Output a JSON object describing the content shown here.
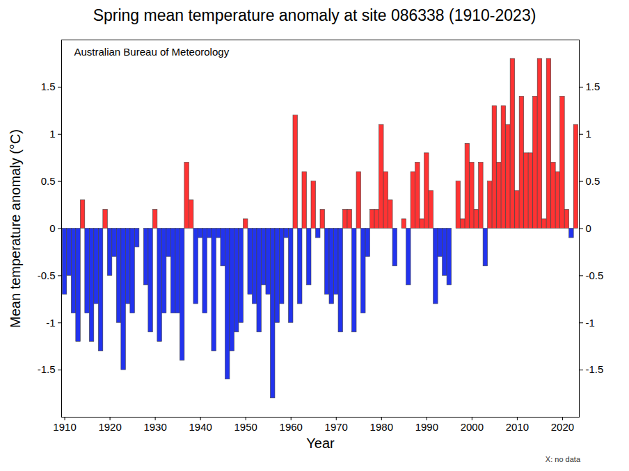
{
  "chart_data": {
    "type": "bar",
    "title": "Spring mean temperature anomaly at site 086338 (1910-2023)",
    "annotation": "Australian Bureau of Meteorology",
    "caption": "X: no data",
    "xlabel": "Year",
    "ylabel": "Mean temperature anomaly (°C)",
    "x": [
      1910,
      1911,
      1912,
      1913,
      1914,
      1915,
      1916,
      1917,
      1918,
      1919,
      1920,
      1921,
      1922,
      1923,
      1924,
      1925,
      1926,
      1927,
      1928,
      1929,
      1930,
      1931,
      1932,
      1933,
      1934,
      1935,
      1936,
      1937,
      1938,
      1939,
      1940,
      1941,
      1942,
      1943,
      1944,
      1945,
      1946,
      1947,
      1948,
      1949,
      1950,
      1951,
      1952,
      1953,
      1954,
      1955,
      1956,
      1957,
      1958,
      1959,
      1960,
      1961,
      1962,
      1963,
      1964,
      1965,
      1966,
      1967,
      1968,
      1969,
      1970,
      1971,
      1972,
      1973,
      1974,
      1975,
      1976,
      1977,
      1978,
      1979,
      1980,
      1981,
      1982,
      1983,
      1984,
      1985,
      1986,
      1987,
      1988,
      1989,
      1990,
      1991,
      1992,
      1993,
      1994,
      1995,
      1996,
      1997,
      1998,
      1999,
      2000,
      2001,
      2002,
      2003,
      2004,
      2005,
      2006,
      2007,
      2008,
      2009,
      2010,
      2011,
      2012,
      2013,
      2014,
      2015,
      2016,
      2017,
      2018,
      2019,
      2020,
      2021,
      2022,
      2023
    ],
    "values": [
      -0.7,
      -0.5,
      -0.9,
      -1.2,
      0.3,
      -0.9,
      -1.2,
      -0.8,
      -1.3,
      0.2,
      -0.5,
      -0.3,
      -1.0,
      -1.5,
      -0.8,
      -0.9,
      -0.2,
      0,
      -0.6,
      -1.1,
      0.2,
      -1.2,
      -0.9,
      -0.3,
      -0.9,
      -0.9,
      -1.4,
      0.7,
      0.3,
      -0.8,
      -0.1,
      -0.9,
      -0.1,
      -1.3,
      -0.1,
      -0.4,
      -1.6,
      -1.3,
      -1.1,
      -1.0,
      0.1,
      -0.7,
      -0.8,
      -1.1,
      -0.6,
      -0.7,
      -1.8,
      -1.0,
      -0.8,
      -0.1,
      -1.0,
      1.2,
      -0.8,
      0.6,
      -0.6,
      0.5,
      -0.1,
      0.2,
      -0.7,
      -0.8,
      -0.7,
      -1.1,
      0.2,
      0.2,
      -1.1,
      0.6,
      -0.9,
      -0.3,
      0.2,
      0.2,
      1.1,
      0.6,
      0.3,
      -0.4,
      0,
      0.1,
      -0.6,
      0.6,
      0.7,
      0.1,
      0.8,
      0.4,
      -0.8,
      -0.3,
      -0.5,
      -0.6,
      0,
      0.5,
      0.1,
      0.9,
      0.7,
      0.2,
      0.7,
      -0.4,
      0.5,
      1.3,
      0.7,
      1.3,
      1.1,
      1.8,
      0.4,
      1.4,
      0.8,
      0.8,
      1.4,
      1.8,
      0.1,
      1.8,
      0.7,
      0.6,
      1.4,
      0.2,
      -0.1,
      1.1
    ],
    "colors": [
      "#2233ee",
      "#2233ee",
      "#2233ee",
      "#2233ee",
      "#ff3333",
      "#2233ee",
      "#2233ee",
      "#2233ee",
      "#2233ee",
      "#ff3333",
      "#2233ee",
      "#2233ee",
      "#2233ee",
      "#2233ee",
      "#2233ee",
      "#2233ee",
      "#2233ee",
      "#ff3333",
      "#2233ee",
      "#2233ee",
      "#ff3333",
      "#2233ee",
      "#2233ee",
      "#2233ee",
      "#2233ee",
      "#2233ee",
      "#2233ee",
      "#ff3333",
      "#ff3333",
      "#2233ee",
      "#2233ee",
      "#2233ee",
      "#2233ee",
      "#2233ee",
      "#2233ee",
      "#2233ee",
      "#2233ee",
      "#2233ee",
      "#2233ee",
      "#2233ee",
      "#ff3333",
      "#2233ee",
      "#2233ee",
      "#2233ee",
      "#2233ee",
      "#2233ee",
      "#2233ee",
      "#2233ee",
      "#2233ee",
      "#2233ee",
      "#2233ee",
      "#ff3333",
      "#2233ee",
      "#ff3333",
      "#2233ee",
      "#ff3333",
      "#2233ee",
      "#ff3333",
      "#2233ee",
      "#2233ee",
      "#2233ee",
      "#2233ee",
      "#ff3333",
      "#ff3333",
      "#2233ee",
      "#ff3333",
      "#2233ee",
      "#2233ee",
      "#ff3333",
      "#ff3333",
      "#ff3333",
      "#ff3333",
      "#ff3333",
      "#2233ee",
      "#ff3333",
      "#ff3333",
      "#2233ee",
      "#ff3333",
      "#ff3333",
      "#ff3333",
      "#ff3333",
      "#ff3333",
      "#2233ee",
      "#2233ee",
      "#2233ee",
      "#2233ee",
      "#ff3333",
      "#ff3333",
      "#ff3333",
      "#ff3333",
      "#ff3333",
      "#ff3333",
      "#ff3333",
      "#2233ee",
      "#ff3333",
      "#ff3333",
      "#ff3333",
      "#ff3333",
      "#ff3333",
      "#ff3333",
      "#ff3333",
      "#ff3333",
      "#ff3333",
      "#ff3333",
      "#ff3333",
      "#ff3333",
      "#ff3333",
      "#ff3333",
      "#ff3333",
      "#ff3333",
      "#ff3333",
      "#ff3333",
      "#2233ee",
      "#ff3333"
    ],
    "xlim": [
      1909.3,
      2023.7
    ],
    "xticks": [
      1910,
      1920,
      1930,
      1940,
      1950,
      1960,
      1970,
      1980,
      1990,
      2000,
      2010,
      2020
    ],
    "ylim": [
      -2,
      2
    ],
    "yticks": [
      -1.5,
      -1,
      -0.5,
      0,
      0.5,
      1,
      1.5
    ],
    "grid": false
  }
}
